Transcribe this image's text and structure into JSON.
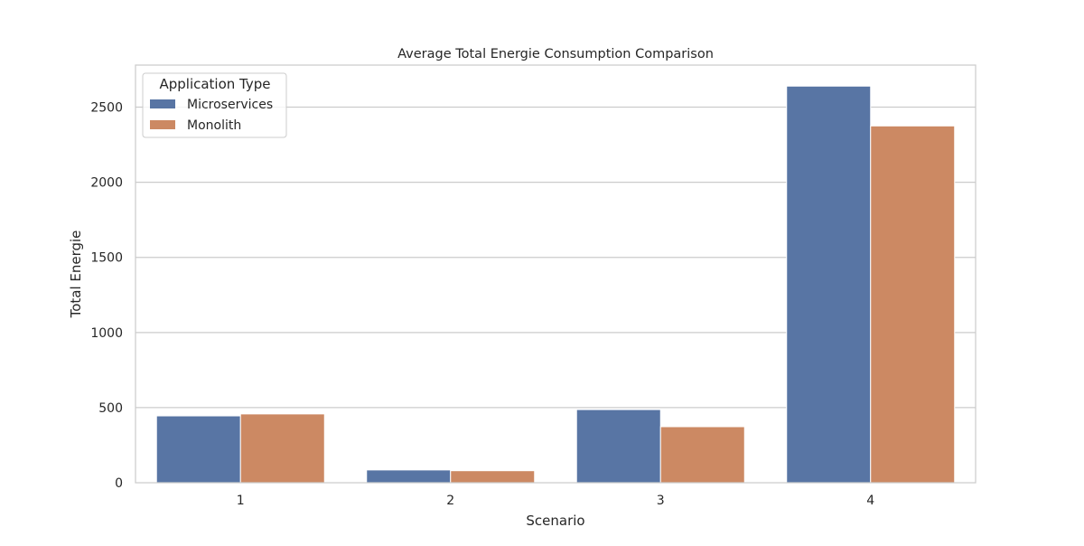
{
  "chart_data": {
    "type": "bar",
    "title": "Average Total Energie Consumption Comparison",
    "xlabel": "Scenario",
    "ylabel": "Total Energie",
    "categories": [
      "1",
      "2",
      "3",
      "4"
    ],
    "series": [
      {
        "name": "Microservices",
        "color": "#5875a4",
        "values": [
          445,
          85,
          487,
          2640
        ]
      },
      {
        "name": "Monolith",
        "color": "#cc8963",
        "values": [
          458,
          80,
          373,
          2375
        ]
      }
    ],
    "ylim": [
      0,
      2780
    ],
    "yticks": [
      0,
      500,
      1000,
      1500,
      2000,
      2500
    ],
    "grid": true,
    "legend": {
      "title": "Application Type",
      "placement": "top-left"
    }
  }
}
